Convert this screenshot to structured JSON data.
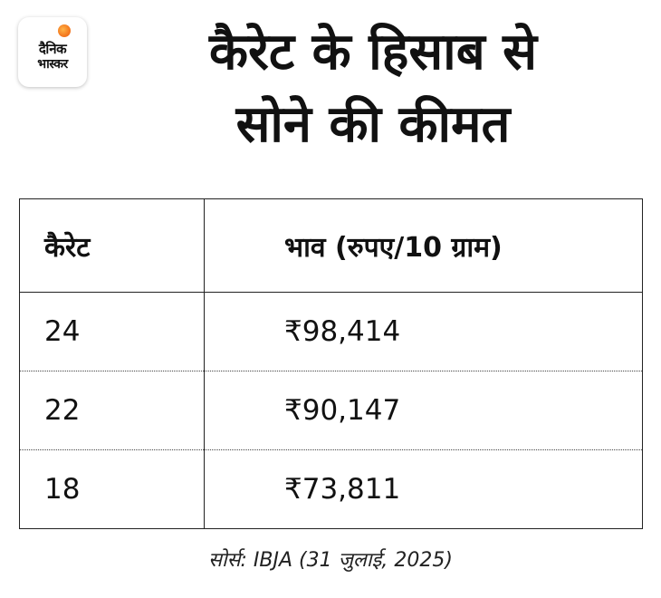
{
  "brand": {
    "logo_line1": "दैनिक",
    "logo_line2": "भास्कर"
  },
  "title": {
    "line1": "कैरेट के हिसाब से",
    "line2": "सोने की कीमत"
  },
  "table": {
    "headers": [
      "कैरेट",
      "भाव (रुपए/10 ग्राम)"
    ],
    "rows": [
      [
        "24",
        "₹98,414"
      ],
      [
        "22",
        "₹90,147"
      ],
      [
        "18",
        "₹73,811"
      ]
    ]
  },
  "source": "सोर्स: IBJA (31 जुलाई, 2025)"
}
